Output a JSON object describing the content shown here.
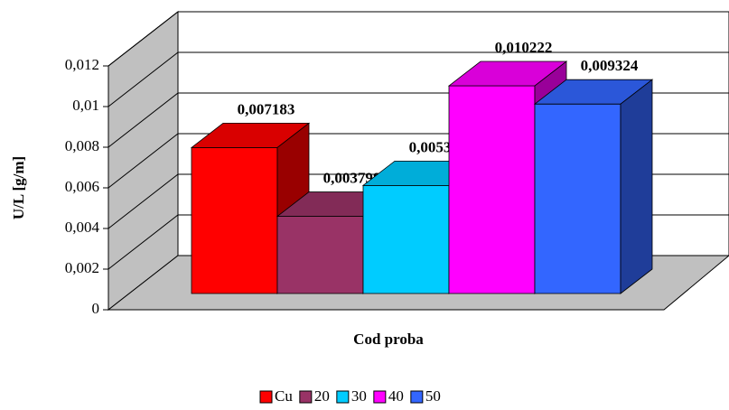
{
  "chart_data": {
    "type": "bar3d",
    "categories": [
      null
    ],
    "series": [
      {
        "name": "Cu",
        "color": "#ff0000",
        "values": [
          0.007183
        ],
        "value_labels": [
          "0,007183"
        ]
      },
      {
        "name": "20",
        "color": "#993366",
        "values": [
          0.003798
        ],
        "value_labels": [
          "0,003798"
        ]
      },
      {
        "name": "30",
        "color": "#00ccff",
        "values": [
          0.005318
        ],
        "value_labels": [
          "0,005318"
        ]
      },
      {
        "name": "40",
        "color": "#ff00ff",
        "values": [
          0.010222
        ],
        "value_labels": [
          "0,010222"
        ]
      },
      {
        "name": "50",
        "color": "#3366ff",
        "values": [
          0.009324
        ],
        "value_labels": [
          "0,009324"
        ]
      }
    ],
    "y_label": "U/L [g/m]",
    "x_label": "Cod proba",
    "ylim": [
      0,
      0.012
    ],
    "yticks": [
      0,
      {
        "value": 0.002,
        "label": "0,002"
      },
      {
        "value": 0.004,
        "label": "0,004"
      },
      {
        "value": 0.006,
        "label": "0,006"
      },
      {
        "value": 0.008,
        "label": "0,008"
      },
      {
        "value": 0.01,
        "label": "0,01"
      },
      {
        "value": 0.012,
        "label": "0,012"
      }
    ],
    "grid": true,
    "legend": "bottom"
  }
}
